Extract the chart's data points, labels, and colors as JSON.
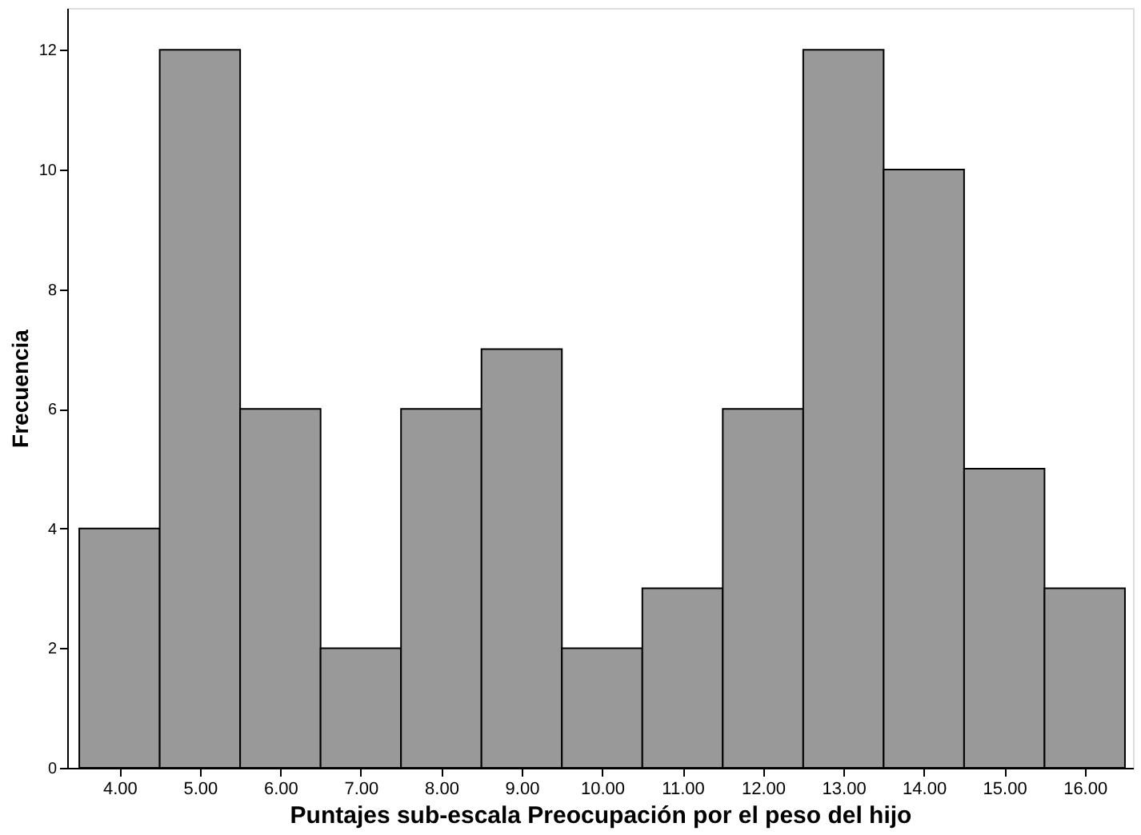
{
  "chart_data": {
    "type": "histogram",
    "xlabel": "Puntajes sub-escala Preocupación por el peso del hijo",
    "ylabel": "Frecuencia",
    "bins": [
      3.5,
      4.5,
      5.5,
      6.5,
      7.5,
      8.5,
      9.5,
      10.5,
      11.5,
      12.5,
      13.5,
      14.5,
      15.5,
      16.5
    ],
    "values": [
      4,
      12,
      6,
      2,
      6,
      7,
      2,
      3,
      6,
      12,
      10,
      5,
      3
    ],
    "color": "#999999",
    "xlim": [
      3.35,
      16.6
    ],
    "xticks": [
      {
        "value": 4,
        "label": "4.00"
      },
      {
        "value": 5,
        "label": "5.00"
      },
      {
        "value": 6,
        "label": "6.00"
      },
      {
        "value": 7,
        "label": "7.00"
      },
      {
        "value": 8,
        "label": "8.00"
      },
      {
        "value": 9,
        "label": "9.00"
      },
      {
        "value": 10,
        "label": "10.00"
      },
      {
        "value": 11,
        "label": "11.00"
      },
      {
        "value": 12,
        "label": "12.00"
      },
      {
        "value": 13,
        "label": "13.00"
      },
      {
        "value": 14,
        "label": "14.00"
      },
      {
        "value": 15,
        "label": "15.00"
      },
      {
        "value": 16,
        "label": "16.00"
      }
    ],
    "ylim": [
      0,
      12.7
    ],
    "yticks": [
      0,
      2,
      4,
      6,
      8,
      10,
      12
    ],
    "grid": false
  }
}
